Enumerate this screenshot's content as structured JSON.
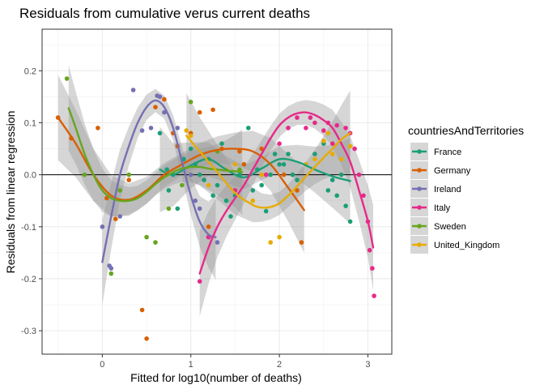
{
  "chart_data": {
    "type": "scatter",
    "title": "Residuals from cumulative verus current deaths",
    "xlabel": "Fitted for log10(number of deaths)",
    "ylabel": "Residuals from linear regression",
    "xlim": [
      -0.68,
      3.27
    ],
    "ylim": [
      -0.345,
      0.28
    ],
    "x_ticks": [
      0,
      1,
      2,
      3
    ],
    "x_tick_labels": [
      "0",
      "1",
      "2",
      "3"
    ],
    "y_ticks": [
      0.2,
      0.1,
      0.0,
      -0.1,
      -0.2,
      -0.3
    ],
    "y_tick_labels": [
      "0.2",
      "0.1",
      "0.0",
      "-0.1",
      "-0.2",
      "-0.3"
    ],
    "hline": 0,
    "grid": true,
    "legend_title": "countriesAndTerritories",
    "legend_position": "right",
    "series": [
      {
        "name": "France",
        "color": "#1b9e77",
        "points": [
          [
            0.65,
            0.08
          ],
          [
            0.73,
            0.01
          ],
          [
            0.75,
            -0.03
          ],
          [
            0.8,
            0.0
          ],
          [
            0.85,
            -0.065
          ],
          [
            0.92,
            0.03
          ],
          [
            1.0,
            0.05
          ],
          [
            1.05,
            0.02
          ],
          [
            1.1,
            0.0
          ],
          [
            1.15,
            -0.01
          ],
          [
            1.2,
            0.03
          ],
          [
            1.25,
            -0.04
          ],
          [
            1.3,
            -0.02
          ],
          [
            1.35,
            0.06
          ],
          [
            1.4,
            -0.05
          ],
          [
            1.45,
            -0.08
          ],
          [
            1.5,
            -0.04
          ],
          [
            1.55,
            0.0
          ],
          [
            1.6,
            0.02
          ],
          [
            1.65,
            0.09
          ],
          [
            1.7,
            -0.03
          ],
          [
            1.75,
            0.01
          ],
          [
            1.8,
            -0.02
          ],
          [
            1.85,
            -0.07
          ],
          [
            1.9,
            0.0
          ],
          [
            1.95,
            0.04
          ],
          [
            2.0,
            0.02
          ],
          [
            2.05,
            0.02
          ],
          [
            2.1,
            0.04
          ],
          [
            2.15,
            0.0
          ],
          [
            2.2,
            -0.01
          ],
          [
            2.3,
            0.02
          ],
          [
            2.4,
            0.04
          ],
          [
            2.5,
            0.06
          ],
          [
            2.55,
            -0.03
          ],
          [
            2.6,
            -0.01
          ],
          [
            2.65,
            -0.04
          ],
          [
            2.7,
            0.0
          ],
          [
            2.75,
            -0.06
          ],
          [
            2.8,
            -0.09
          ]
        ],
        "curve": [
          [
            0.65,
            0.01
          ],
          [
            0.8,
            0.0
          ],
          [
            1.0,
            0.018
          ],
          [
            1.2,
            0.03
          ],
          [
            1.4,
            0.01
          ],
          [
            1.6,
            -0.005
          ],
          [
            1.8,
            0.012
          ],
          [
            2.0,
            0.03
          ],
          [
            2.2,
            0.025
          ],
          [
            2.4,
            0.01
          ],
          [
            2.6,
            -0.003
          ],
          [
            2.8,
            -0.012
          ]
        ]
      },
      {
        "name": "Germany",
        "color": "#d95f02",
        "points": [
          [
            -0.5,
            0.11
          ],
          [
            -0.35,
            0.07
          ],
          [
            -0.05,
            0.09
          ],
          [
            0.05,
            -0.045
          ],
          [
            0.15,
            -0.085
          ],
          [
            0.3,
            -0.01
          ],
          [
            0.45,
            -0.26
          ],
          [
            0.5,
            -0.315
          ],
          [
            0.6,
            0.13
          ],
          [
            0.7,
            0.145
          ],
          [
            0.8,
            0.08
          ],
          [
            0.85,
            0.055
          ],
          [
            1.0,
            0.08
          ],
          [
            1.1,
            0.12
          ],
          [
            1.2,
            -0.1
          ],
          [
            1.25,
            0.125
          ],
          [
            1.35,
            0.05
          ],
          [
            1.55,
            0.045
          ],
          [
            1.6,
            0.02
          ],
          [
            1.8,
            0.05
          ],
          [
            2.05,
            0.0
          ],
          [
            2.2,
            -0.03
          ],
          [
            2.25,
            -0.13
          ]
        ],
        "curve": [
          [
            -0.5,
            0.11
          ],
          [
            -0.3,
            0.06
          ],
          [
            -0.1,
            0.0
          ],
          [
            0.1,
            -0.04
          ],
          [
            0.3,
            -0.048
          ],
          [
            0.5,
            -0.03
          ],
          [
            0.7,
            0.0
          ],
          [
            0.9,
            0.02
          ],
          [
            1.1,
            0.038
          ],
          [
            1.3,
            0.048
          ],
          [
            1.5,
            0.05
          ],
          [
            1.7,
            0.045
          ],
          [
            1.9,
            0.02
          ],
          [
            2.1,
            -0.025
          ],
          [
            2.28,
            -0.068
          ]
        ]
      },
      {
        "name": "Ireland",
        "color": "#7570b3",
        "points": [
          [
            0.0,
            -0.1
          ],
          [
            0.08,
            -0.175
          ],
          [
            0.1,
            -0.18
          ],
          [
            0.2,
            -0.08
          ],
          [
            0.35,
            0.163
          ],
          [
            0.45,
            0.085
          ],
          [
            0.55,
            0.09
          ],
          [
            0.62,
            0.152
          ],
          [
            0.65,
            0.15
          ],
          [
            0.7,
            0.12
          ],
          [
            0.85,
            0.09
          ],
          [
            1.0,
            0.0
          ],
          [
            1.05,
            -0.05
          ],
          [
            1.1,
            -0.065
          ],
          [
            1.2,
            -0.12
          ],
          [
            1.3,
            -0.13
          ]
        ],
        "curve": [
          [
            0.0,
            -0.168
          ],
          [
            0.1,
            -0.08
          ],
          [
            0.2,
            0.0
          ],
          [
            0.3,
            0.055
          ],
          [
            0.4,
            0.1
          ],
          [
            0.5,
            0.13
          ],
          [
            0.6,
            0.143
          ],
          [
            0.7,
            0.13
          ],
          [
            0.8,
            0.09
          ],
          [
            0.9,
            0.025
          ],
          [
            1.0,
            -0.04
          ],
          [
            1.1,
            -0.09
          ],
          [
            1.2,
            -0.115
          ],
          [
            1.28,
            -0.12
          ]
        ]
      },
      {
        "name": "Italy",
        "color": "#e7298a",
        "points": [
          [
            1.1,
            -0.205
          ],
          [
            1.2,
            -0.12
          ],
          [
            1.5,
            -0.03
          ],
          [
            1.85,
            0.0
          ],
          [
            2.0,
            0.06
          ],
          [
            2.1,
            0.09
          ],
          [
            2.2,
            0.11
          ],
          [
            2.3,
            0.09
          ],
          [
            2.35,
            0.11
          ],
          [
            2.4,
            0.1
          ],
          [
            2.5,
            0.085
          ],
          [
            2.55,
            0.1
          ],
          [
            2.6,
            0.06
          ],
          [
            2.65,
            0.095
          ],
          [
            2.75,
            0.09
          ],
          [
            2.8,
            0.08
          ],
          [
            2.85,
            0.05
          ],
          [
            2.9,
            0.0
          ],
          [
            2.95,
            -0.04
          ],
          [
            3.0,
            -0.09
          ],
          [
            3.02,
            -0.145
          ],
          [
            3.05,
            -0.18
          ],
          [
            3.07,
            -0.233
          ]
        ],
        "curve": [
          [
            1.1,
            -0.19
          ],
          [
            1.2,
            -0.14
          ],
          [
            1.3,
            -0.1
          ],
          [
            1.4,
            -0.07
          ],
          [
            1.5,
            -0.045
          ],
          [
            1.6,
            -0.02
          ],
          [
            1.7,
            0.01
          ],
          [
            1.8,
            0.04
          ],
          [
            1.9,
            0.07
          ],
          [
            2.0,
            0.095
          ],
          [
            2.1,
            0.11
          ],
          [
            2.2,
            0.118
          ],
          [
            2.3,
            0.12
          ],
          [
            2.4,
            0.115
          ],
          [
            2.5,
            0.105
          ],
          [
            2.6,
            0.09
          ],
          [
            2.7,
            0.06
          ],
          [
            2.8,
            0.025
          ],
          [
            2.9,
            -0.03
          ],
          [
            3.0,
            -0.09
          ],
          [
            3.06,
            -0.14
          ]
        ]
      },
      {
        "name": "Sweden",
        "color": "#66a61e",
        "points": [
          [
            -0.4,
            0.185
          ],
          [
            -0.2,
            0.0
          ],
          [
            0.1,
            -0.19
          ],
          [
            0.2,
            -0.03
          ],
          [
            0.3,
            0.0
          ],
          [
            0.5,
            -0.12
          ],
          [
            0.6,
            -0.13
          ],
          [
            0.75,
            -0.065
          ],
          [
            0.9,
            -0.02
          ],
          [
            1.0,
            0.14
          ],
          [
            1.3,
            0.045
          ],
          [
            1.55,
            0.01
          ]
        ],
        "curve": [
          [
            -0.38,
            0.128
          ],
          [
            -0.3,
            0.09
          ],
          [
            -0.2,
            0.04
          ],
          [
            -0.1,
            0.0
          ],
          [
            0.0,
            -0.03
          ],
          [
            0.1,
            -0.045
          ],
          [
            0.2,
            -0.05
          ],
          [
            0.3,
            -0.05
          ],
          [
            0.4,
            -0.045
          ],
          [
            0.5,
            -0.033
          ],
          [
            0.6,
            -0.018
          ],
          [
            0.7,
            -0.005
          ],
          [
            0.8,
            0.005
          ],
          [
            0.9,
            0.012
          ],
          [
            1.0,
            0.015
          ],
          [
            1.1,
            0.015
          ],
          [
            1.2,
            0.012
          ],
          [
            1.3,
            0.01
          ],
          [
            1.4,
            0.008
          ],
          [
            1.5,
            0.007
          ],
          [
            1.58,
            0.005
          ]
        ]
      },
      {
        "name": "United_Kingdom",
        "color": "#e6ab02",
        "points": [
          [
            0.95,
            0.085
          ],
          [
            1.0,
            0.075
          ],
          [
            1.2,
            -0.02
          ],
          [
            1.4,
            0.01
          ],
          [
            1.5,
            0.02
          ],
          [
            1.7,
            -0.05
          ],
          [
            1.8,
            0.0
          ],
          [
            1.9,
            -0.13
          ],
          [
            2.0,
            -0.12
          ],
          [
            2.3,
            0.02
          ],
          [
            2.4,
            0.03
          ],
          [
            2.5,
            0.065
          ],
          [
            2.55,
            0.08
          ],
          [
            2.6,
            0.04
          ],
          [
            2.7,
            0.03
          ],
          [
            2.8,
            0.055
          ]
        ],
        "curve": [
          [
            0.95,
            0.075
          ],
          [
            1.1,
            0.045
          ],
          [
            1.3,
            0.005
          ],
          [
            1.5,
            -0.035
          ],
          [
            1.7,
            -0.058
          ],
          [
            1.8,
            -0.063
          ],
          [
            1.9,
            -0.062
          ],
          [
            2.0,
            -0.055
          ],
          [
            2.1,
            -0.04
          ],
          [
            2.2,
            -0.022
          ],
          [
            2.3,
            -0.003
          ],
          [
            2.4,
            0.015
          ],
          [
            2.5,
            0.033
          ],
          [
            2.6,
            0.05
          ],
          [
            2.7,
            0.068
          ],
          [
            2.8,
            0.08
          ]
        ]
      }
    ]
  }
}
